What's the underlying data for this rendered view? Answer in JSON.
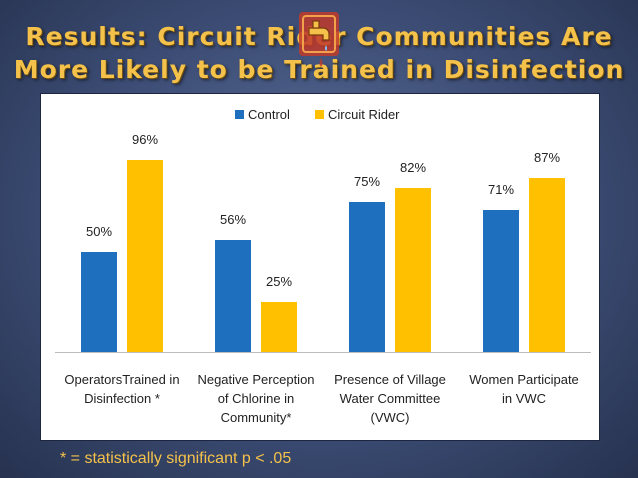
{
  "slide": {
    "title_line1": "Results: Circuit Rider Communities Are",
    "title_line2": "More Likely to be Trained in Disinfection",
    "footnote": "* = statistically significant  p < .05",
    "icon": "faucet-dripping-icon"
  },
  "colors": {
    "Control": "#1f6fbf",
    "Circuit Rider": "#ffc000",
    "title": "#f4c24a"
  },
  "chart_data": {
    "type": "bar",
    "categories": [
      "Operators Trained in Disinfection *",
      "Negative Perception of Chlorine in Community*",
      "Presence of Village Water Committee (VWC)",
      "Women Participate in VWC"
    ],
    "series": [
      {
        "name": "Control",
        "values": [
          50,
          56,
          75,
          71
        ],
        "labels": [
          "50%",
          "56%",
          "75%",
          "71%"
        ]
      },
      {
        "name": "Circuit Rider",
        "values": [
          96,
          25,
          82,
          87
        ],
        "labels": [
          "96%",
          "25%",
          "82%",
          "87%"
        ]
      }
    ],
    "category_label_lines": [
      [
        "OperatorsTrained in",
        "Disinfection *"
      ],
      [
        "Negative Perception",
        "of Chlorine in",
        "Community*"
      ],
      [
        "Presence of Village",
        "Water Committee",
        "(VWC)"
      ],
      [
        "Women Participate",
        "in VWC"
      ]
    ],
    "legend": {
      "entries": [
        "Control",
        "Circuit Rider"
      ],
      "position": "top"
    },
    "ylim": [
      0,
      100
    ],
    "grid": false,
    "title": "",
    "xlabel": "",
    "ylabel": ""
  }
}
